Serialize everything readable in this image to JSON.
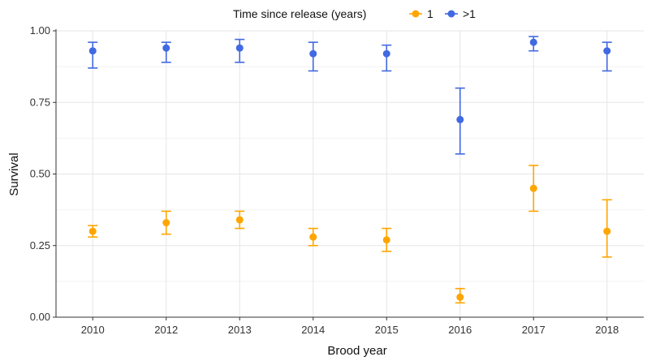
{
  "chart_data": {
    "type": "scatter",
    "legend": {
      "title": "Time since release (years)",
      "position": "top"
    },
    "xlabel": "Brood year",
    "ylabel": "Survival",
    "categories": [
      "2010",
      "2012",
      "2013",
      "2014",
      "2015",
      "2016",
      "2017",
      "2018"
    ],
    "ylim": [
      0,
      1
    ],
    "yticks": [
      "0.00",
      "0.25",
      "0.50",
      "0.75",
      "1.00"
    ],
    "grid": true,
    "series": [
      {
        "name": "1",
        "color": "#FFA500",
        "values": [
          0.3,
          0.33,
          0.34,
          0.28,
          0.27,
          0.07,
          0.45,
          0.3
        ],
        "lower": [
          0.28,
          0.29,
          0.31,
          0.25,
          0.23,
          0.05,
          0.37,
          0.21
        ],
        "upper": [
          0.32,
          0.37,
          0.37,
          0.31,
          0.31,
          0.1,
          0.53,
          0.41
        ]
      },
      {
        "name": ">1",
        "color": "#4169E1",
        "values": [
          0.93,
          0.94,
          0.94,
          0.92,
          0.92,
          0.69,
          0.96,
          0.93
        ],
        "lower": [
          0.87,
          0.89,
          0.89,
          0.86,
          0.86,
          0.57,
          0.93,
          0.86
        ],
        "upper": [
          0.96,
          0.96,
          0.97,
          0.96,
          0.95,
          0.8,
          0.98,
          0.96
        ]
      }
    ]
  }
}
